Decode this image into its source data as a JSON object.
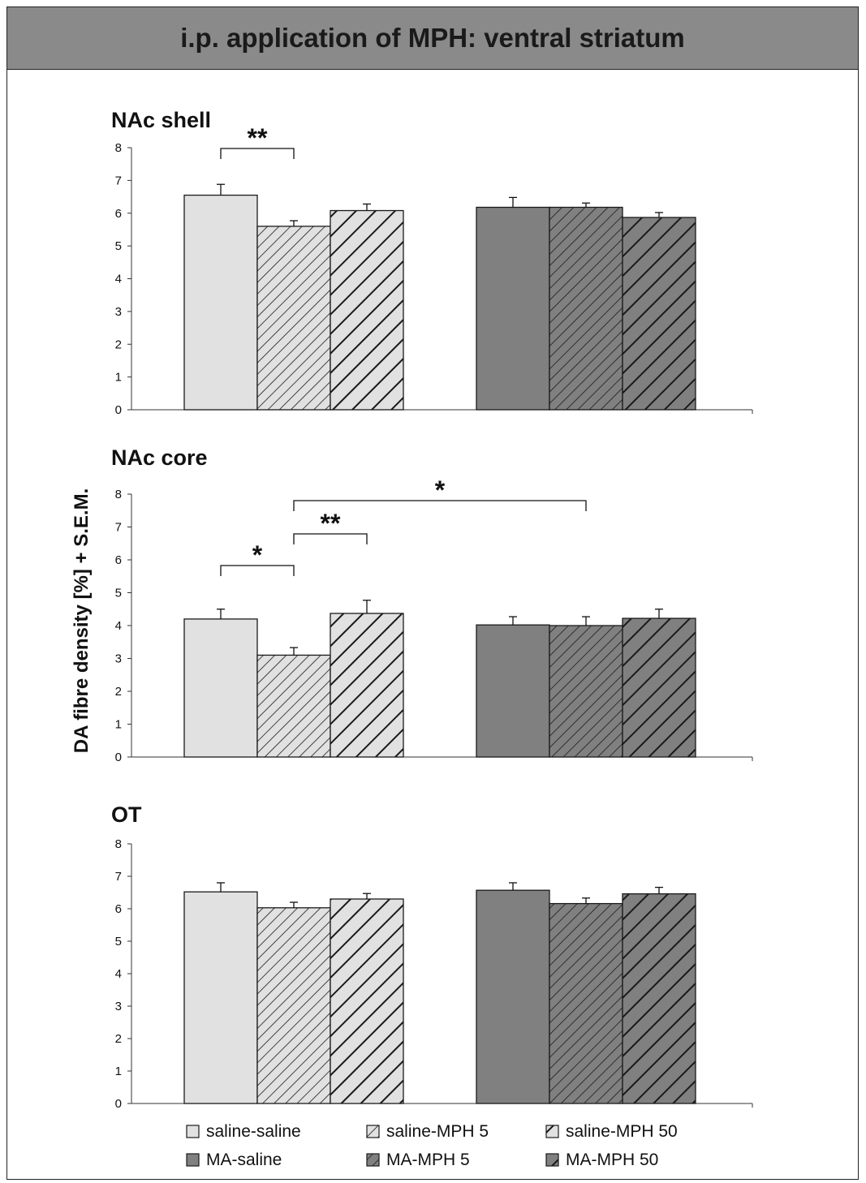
{
  "header": {
    "title": "i.p. application of MPH: ventral striatum"
  },
  "chart_data": [
    {
      "type": "bar",
      "title": "NAc shell",
      "ylabel": "DA fibre density [%] + S.E.M.",
      "ylim": [
        0,
        8
      ],
      "yticks": [
        0,
        1,
        2,
        3,
        4,
        5,
        6,
        7,
        8
      ],
      "categories": [
        "saline-saline",
        "saline-MPH 5",
        "saline-MPH 50",
        "MA-saline",
        "MA-MPH 5",
        "MA-MPH 50"
      ],
      "values": [
        6.55,
        5.6,
        6.08,
        6.18,
        6.18,
        5.87
      ],
      "errors": [
        0.33,
        0.17,
        0.2,
        0.3,
        0.13,
        0.15
      ],
      "significance": [
        {
          "from": "saline-saline",
          "to": "saline-MPH 5",
          "label": "**"
        }
      ]
    },
    {
      "type": "bar",
      "title": "NAc core",
      "ylabel": "DA fibre density [%] + S.E.M.",
      "ylim": [
        0,
        8
      ],
      "yticks": [
        0,
        1,
        2,
        3,
        4,
        5,
        6,
        7,
        8
      ],
      "categories": [
        "saline-saline",
        "saline-MPH 5",
        "saline-MPH 50",
        "MA-saline",
        "MA-MPH 5",
        "MA-MPH 50"
      ],
      "values": [
        4.2,
        3.1,
        4.37,
        4.02,
        4.0,
        4.22
      ],
      "errors": [
        0.3,
        0.23,
        0.4,
        0.25,
        0.27,
        0.28
      ],
      "significance": [
        {
          "from": "saline-saline",
          "to": "saline-MPH 5",
          "label": "*"
        },
        {
          "from": "saline-MPH 5",
          "to": "saline-MPH 50",
          "label": "**"
        },
        {
          "from": "saline-MPH 5",
          "to": "MA-MPH 5",
          "label": "*"
        }
      ]
    },
    {
      "type": "bar",
      "title": "OT",
      "ylabel": "DA fibre density [%] + S.E.M.",
      "ylim": [
        0,
        8
      ],
      "yticks": [
        0,
        1,
        2,
        3,
        4,
        5,
        6,
        7,
        8
      ],
      "categories": [
        "saline-saline",
        "saline-MPH 5",
        "saline-MPH 50",
        "MA-saline",
        "MA-MPH 5",
        "MA-MPH 50"
      ],
      "values": [
        6.52,
        6.03,
        6.3,
        6.57,
        6.16,
        6.46
      ],
      "errors": [
        0.28,
        0.17,
        0.17,
        0.23,
        0.17,
        0.2
      ],
      "significance": []
    }
  ],
  "legend": [
    {
      "label": "saline-saline",
      "fill": "#e1e1e1",
      "hatch": "none"
    },
    {
      "label": "saline-MPH 5",
      "fill": "#e1e1e1",
      "hatch": "thin"
    },
    {
      "label": "saline-MPH 50",
      "fill": "#e1e1e1",
      "hatch": "thick"
    },
    {
      "label": "MA-saline",
      "fill": "#808080",
      "hatch": "none"
    },
    {
      "label": "MA-MPH 5",
      "fill": "#808080",
      "hatch": "thin"
    },
    {
      "label": "MA-MPH 50",
      "fill": "#808080",
      "hatch": "thick"
    }
  ],
  "colors": {
    "light": "#e1e1e1",
    "dark": "#808080",
    "stroke": "#1a1a1a",
    "header": "#8a8a8a"
  }
}
